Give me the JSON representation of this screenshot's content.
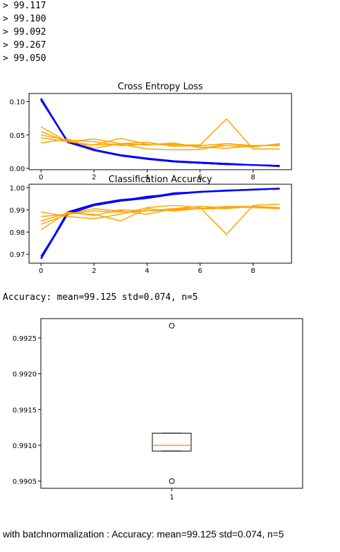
{
  "log": {
    "lines": [
      "> 99.117",
      "> 99.100",
      "> 99.092",
      "> 99.267",
      "> 99.050"
    ]
  },
  "summary_text": "Accuracy: mean=99.125 std=0.074, n=5",
  "batchnorm_text": "with batchnormalization : Accuracy: mean=99.125 std=0.074, n=5",
  "colors": {
    "train": "#0000ff",
    "test": "#ffa500",
    "median": "#ff7f0e",
    "axis": "#000000"
  },
  "chart_data": [
    {
      "type": "line",
      "title": "Cross Entropy Loss",
      "xlabel": "",
      "ylabel": "",
      "xlim": [
        -0.45,
        9.45
      ],
      "ylim": [
        -0.002,
        0.112
      ],
      "x_ticks": [
        0,
        2,
        4,
        6,
        8
      ],
      "y_ticks": [
        0.0,
        0.05,
        0.1
      ],
      "y_tick_labels": [
        "0.00",
        "0.05",
        "0.10"
      ],
      "x": [
        0,
        1,
        2,
        3,
        4,
        5,
        6,
        7,
        8,
        9
      ],
      "series": [
        {
          "color": "blue",
          "values": [
            0.105,
            0.04,
            0.027,
            0.019,
            0.014,
            0.01,
            0.008,
            0.006,
            0.005,
            0.004
          ]
        },
        {
          "color": "blue",
          "values": [
            0.103,
            0.041,
            0.028,
            0.02,
            0.015,
            0.011,
            0.008,
            0.007,
            0.005,
            0.004
          ]
        },
        {
          "color": "blue",
          "values": [
            0.104,
            0.039,
            0.027,
            0.019,
            0.014,
            0.01,
            0.008,
            0.006,
            0.005,
            0.003
          ]
        },
        {
          "color": "blue",
          "values": [
            0.102,
            0.04,
            0.028,
            0.02,
            0.015,
            0.011,
            0.009,
            0.007,
            0.005,
            0.004
          ]
        },
        {
          "color": "blue",
          "values": [
            0.104,
            0.04,
            0.027,
            0.019,
            0.014,
            0.01,
            0.008,
            0.006,
            0.005,
            0.004
          ]
        },
        {
          "color": "orange",
          "values": [
            0.062,
            0.04,
            0.044,
            0.037,
            0.039,
            0.033,
            0.034,
            0.037,
            0.033,
            0.036
          ]
        },
        {
          "color": "orange",
          "values": [
            0.055,
            0.04,
            0.035,
            0.045,
            0.036,
            0.036,
            0.032,
            0.03,
            0.034,
            0.034
          ]
        },
        {
          "color": "orange",
          "values": [
            0.05,
            0.042,
            0.04,
            0.034,
            0.036,
            0.035,
            0.035,
            0.074,
            0.029,
            0.029
          ]
        },
        {
          "color": "orange",
          "values": [
            0.046,
            0.04,
            0.035,
            0.036,
            0.029,
            0.028,
            0.028,
            0.037,
            0.034,
            0.035
          ]
        },
        {
          "color": "orange",
          "values": [
            0.038,
            0.044,
            0.03,
            0.037,
            0.035,
            0.038,
            0.031,
            0.034,
            0.032,
            0.037
          ]
        }
      ]
    },
    {
      "type": "line",
      "title": "Classification Accuracy",
      "xlabel": "",
      "ylabel": "",
      "xlim": [
        -0.45,
        9.45
      ],
      "ylim": [
        0.966,
        1.0015
      ],
      "x_ticks": [
        0,
        2,
        4,
        6,
        8
      ],
      "y_ticks": [
        0.97,
        0.98,
        0.99,
        1.0
      ],
      "y_tick_labels": [
        "0.97",
        "0.98",
        "0.99",
        "1.00"
      ],
      "x": [
        0,
        1,
        2,
        3,
        4,
        5,
        6,
        7,
        8,
        9
      ],
      "series": [
        {
          "color": "blue",
          "values": [
            0.968,
            0.988,
            0.992,
            0.994,
            0.996,
            0.997,
            0.998,
            0.9985,
            0.999,
            0.9995
          ]
        },
        {
          "color": "blue",
          "values": [
            0.968,
            0.989,
            0.9925,
            0.9945,
            0.9955,
            0.9975,
            0.998,
            0.9988,
            0.999,
            0.9996
          ]
        },
        {
          "color": "blue",
          "values": [
            0.969,
            0.988,
            0.992,
            0.994,
            0.9952,
            0.997,
            0.998,
            0.9986,
            0.9991,
            0.9994
          ]
        },
        {
          "color": "blue",
          "values": [
            0.968,
            0.9885,
            0.9922,
            0.9942,
            0.9958,
            0.9972,
            0.9982,
            0.9987,
            0.999,
            0.9995
          ]
        },
        {
          "color": "blue",
          "values": [
            0.968,
            0.988,
            0.9921,
            0.9943,
            0.9956,
            0.9973,
            0.9981,
            0.9986,
            0.9992,
            0.9996
          ]
        },
        {
          "color": "orange",
          "values": [
            0.989,
            0.987,
            0.986,
            0.988,
            0.991,
            0.992,
            0.991,
            0.979,
            0.992,
            0.9925
          ]
        },
        {
          "color": "orange",
          "values": [
            0.987,
            0.988,
            0.9895,
            0.989,
            0.9895,
            0.99,
            0.9905,
            0.9915,
            0.9915,
            0.9905
          ]
        },
        {
          "color": "orange",
          "values": [
            0.985,
            0.9885,
            0.988,
            0.985,
            0.9905,
            0.9895,
            0.9905,
            0.9905,
            0.9915,
            0.991
          ]
        },
        {
          "color": "orange",
          "values": [
            0.9835,
            0.988,
            0.9905,
            0.9895,
            0.988,
            0.9905,
            0.9915,
            0.991,
            0.9915,
            0.991
          ]
        },
        {
          "color": "orange",
          "values": [
            0.981,
            0.989,
            0.9875,
            0.99,
            0.9895,
            0.9905,
            0.9905,
            0.9915,
            0.991,
            0.9905
          ]
        }
      ]
    },
    {
      "type": "box",
      "title": "",
      "categories": [
        "1"
      ],
      "y_ticks": [
        0.9905,
        0.991,
        0.9915,
        0.992,
        0.9925
      ],
      "y_tick_labels": [
        "0.9905",
        "0.9910",
        "0.9915",
        "0.9920",
        "0.9925"
      ],
      "ylim": [
        0.9904,
        0.99277
      ],
      "box": {
        "q1": 0.99092,
        "median": 0.991,
        "q3": 0.99117,
        "whisker_low": 0.99092,
        "whisker_high": 0.99117
      },
      "outliers": [
        0.99267,
        0.9905
      ]
    }
  ]
}
